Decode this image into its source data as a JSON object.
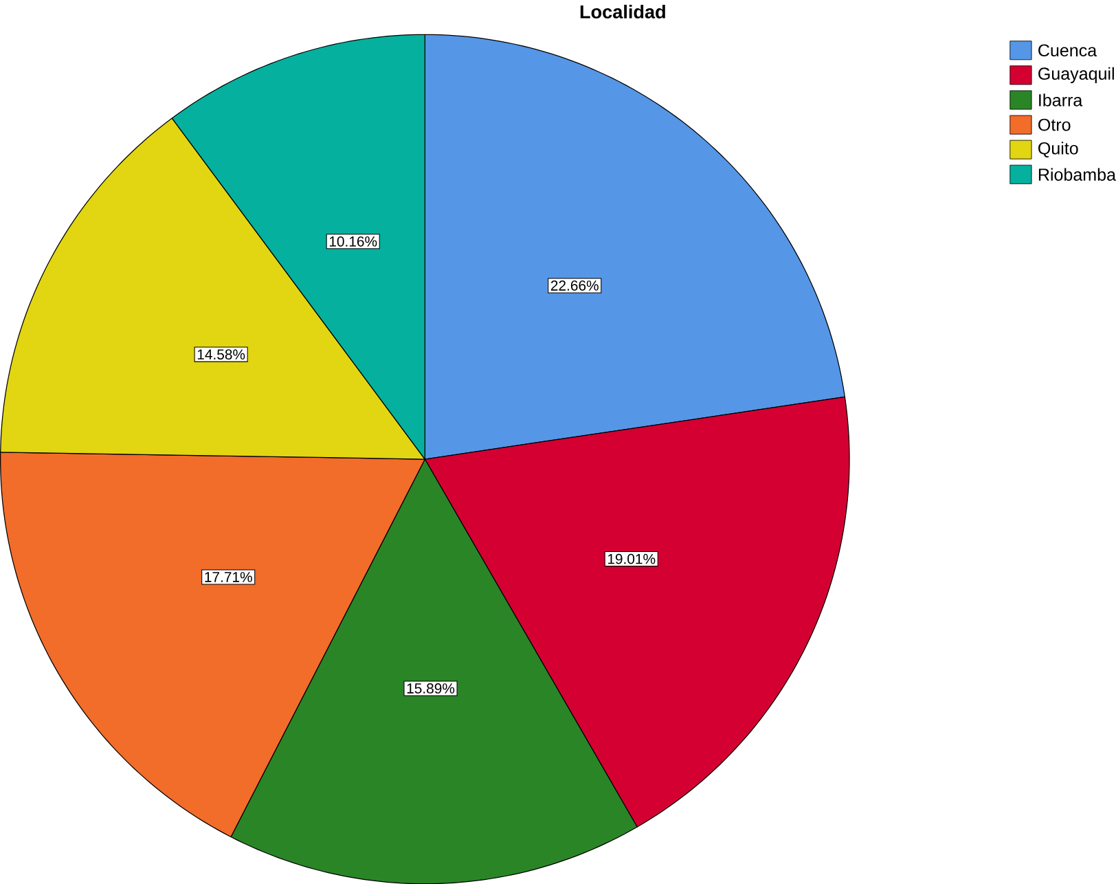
{
  "chart_data": {
    "type": "pie",
    "title": "Localidad",
    "categories": [
      "Cuenca",
      "Guayaquil",
      "Ibarra",
      "Otro",
      "Quito",
      "Riobamba"
    ],
    "values": [
      22.66,
      19.01,
      15.89,
      17.71,
      14.58,
      10.16
    ],
    "colors": [
      "#5596e6",
      "#d50032",
      "#2a8527",
      "#f26c2a",
      "#e2d512",
      "#05b09e"
    ],
    "value_labels": [
      "22.66%",
      "19.01%",
      "15.89%",
      "17.71%",
      "14.58%",
      "10.16%"
    ],
    "legend": "top right"
  }
}
